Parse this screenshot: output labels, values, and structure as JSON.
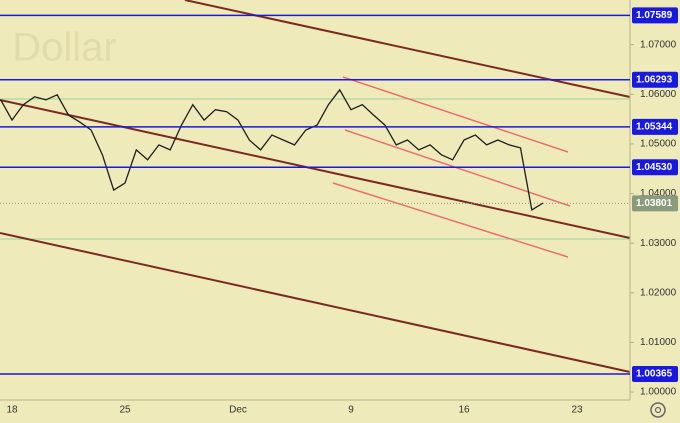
{
  "chart_data": {
    "type": "line",
    "watermark": ". Dollar",
    "categories": [
      null,
      "18",
      null,
      null,
      null,
      null,
      null,
      null,
      null,
      null,
      null,
      "25",
      null,
      null,
      null,
      null,
      null,
      null,
      null,
      null,
      null,
      "Dec",
      null,
      null,
      null,
      null,
      null,
      null,
      null,
      null,
      null,
      "9",
      null,
      null,
      null,
      null,
      null,
      null,
      null,
      null,
      null,
      "16",
      null,
      null,
      null,
      null,
      null,
      null,
      null,
      null,
      null,
      "23",
      null,
      null
    ],
    "series": [
      {
        "color": "#1e1e1e",
        "values": [
          1.0589,
          1.0548,
          1.0579,
          1.0595,
          1.0589,
          1.0599,
          1.0558,
          1.0544,
          1.0528,
          1.0478,
          1.0407,
          1.0421,
          1.0488,
          1.0468,
          1.0498,
          1.0488,
          1.0538,
          1.0579,
          1.0548,
          1.0569,
          1.0565,
          1.0548,
          1.0508,
          1.0488,
          1.0518,
          1.0508,
          1.0498,
          1.0528,
          1.0538,
          1.0579,
          1.0609,
          1.0569,
          1.0579,
          1.0558,
          1.0538,
          1.0498,
          1.0508,
          1.0488,
          1.0498,
          1.0478,
          1.0468,
          1.0508,
          1.0518,
          1.0498,
          1.0508,
          1.0498,
          1.0492,
          1.0367,
          1.0381,
          null,
          null,
          null,
          null,
          null
        ]
      }
    ],
    "ylim": [
      0.9984,
      1.079
    ],
    "yticks": [
      {
        "value": 1.07,
        "label": "1.07000"
      },
      {
        "value": 1.06,
        "label": "1.06000"
      },
      {
        "value": 1.05,
        "label": "1.05000"
      },
      {
        "value": 1.04,
        "label": "1.04000"
      },
      {
        "value": 1.03,
        "label": "1.03000"
      },
      {
        "value": 1.02,
        "label": "1.02000"
      },
      {
        "value": 1.01,
        "label": "1.01000"
      },
      {
        "value": 1,
        "label": "1.00000"
      }
    ],
    "levels": [
      1.07589,
      1.06293,
      1.05344,
      {
        "value": 1.0453,
        "label": "1.04530"
      },
      1.00365
    ],
    "level_color": "#1a1adc",
    "last_price": 1.03801,
    "last_price_color": "#8a9a7a"
  }
}
